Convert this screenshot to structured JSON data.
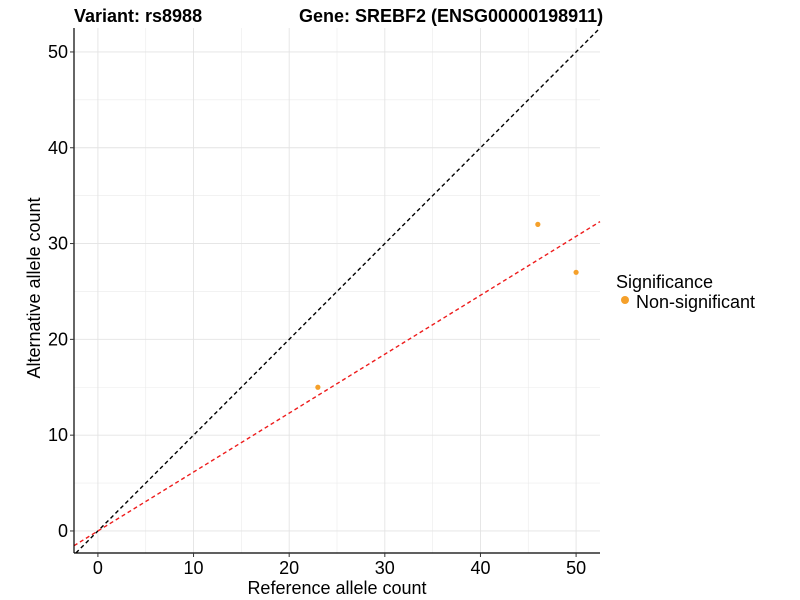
{
  "chart_data": {
    "type": "scatter",
    "title_left": "Variant: rs8988",
    "title_right": "Gene: SREBF2 (ENSG00000198911)",
    "xlabel": "Reference allele count",
    "ylabel": "Alternative allele count",
    "xlim": [
      -2.5,
      52.5
    ],
    "ylim": [
      -2.3,
      52.5
    ],
    "xticks": [
      0,
      10,
      20,
      30,
      40,
      50
    ],
    "yticks": [
      0,
      10,
      20,
      30,
      40,
      50
    ],
    "grid": true,
    "series": [
      {
        "name": "Non-significant",
        "color": "#f5a02a",
        "points": [
          {
            "x": 23,
            "y": 15
          },
          {
            "x": 46,
            "y": 32
          },
          {
            "x": 50,
            "y": 27
          }
        ]
      }
    ],
    "reference_lines": [
      {
        "name": "identity",
        "slope": 1,
        "intercept": 0,
        "color": "#000000",
        "style": "dashed"
      },
      {
        "name": "fit",
        "slope": 0.615,
        "intercept": 0,
        "color": "#ee1c1c",
        "style": "dashed"
      }
    ],
    "legend": {
      "title": "Significance",
      "placement": "right",
      "items": [
        {
          "label": "Non-significant",
          "color": "#f5a02a"
        }
      ]
    }
  }
}
